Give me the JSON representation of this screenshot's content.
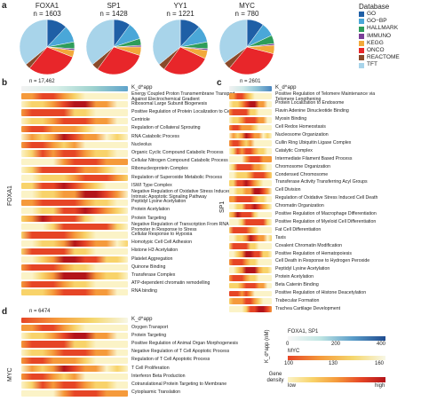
{
  "panel_a": {
    "letter": "a",
    "pies": [
      {
        "factor": "FOXA1",
        "n": "n = 1603",
        "slices": [
          0.12,
          0.1,
          0.04,
          0.01,
          0.04,
          0.3,
          0.03,
          0.36
        ]
      },
      {
        "factor": "SP1",
        "n": "n = 1428",
        "slices": [
          0.1,
          0.1,
          0.04,
          0.01,
          0.05,
          0.3,
          0.04,
          0.36
        ]
      },
      {
        "factor": "YY1",
        "n": "n = 1221",
        "slices": [
          0.12,
          0.1,
          0.04,
          0.01,
          0.05,
          0.28,
          0.04,
          0.36
        ]
      },
      {
        "factor": "MYC",
        "n": "n = 780",
        "slices": [
          0.1,
          0.08,
          0.05,
          0.01,
          0.05,
          0.32,
          0.04,
          0.35
        ]
      }
    ],
    "legend_title": "Database",
    "legend": [
      {
        "label": "GO",
        "color": "#1f5fa6"
      },
      {
        "label": "GO−BP",
        "color": "#4aa7d8"
      },
      {
        "label": "HALLMARK",
        "color": "#2e9d5a"
      },
      {
        "label": "IMMUNO",
        "color": "#7b3f98"
      },
      {
        "label": "KEGG",
        "color": "#f2a93b"
      },
      {
        "label": "ONCO",
        "color": "#e8262a"
      },
      {
        "label": "REACTOME",
        "color": "#8a4a2a"
      },
      {
        "label": "TFT",
        "color": "#a8d4ea"
      }
    ]
  },
  "panel_b": {
    "letter": "b",
    "n": "n = 17,462",
    "factor": "FOXA1",
    "kapo": "K_d^app",
    "terms": [
      "Energy Coupled Proton Transmembrane Transport\nAgainst Electrochemical Gradient",
      "Ribosomal Large Subunit Biogenesis",
      "Positive Regulation of Protein Localization to Cell Surface",
      "Centriole",
      "Regulation of Collateral Sprouting",
      "RNA Catabolic Process",
      "Nucleolus",
      "Organic Cyclic Compound Catabolic Process",
      "Cellular Nitrogen Compound Catabolic Process",
      "Ribonucleoprotein Complex",
      "Regulation of Superoxide Metabolic Process",
      "ISWI Type Complex",
      "Negative Regulation of Oxidative Stress Induced\nIntrinsic Apoptotic Signaling Pathway",
      "Peptidyl Lysine Acetylation",
      "Protein Acetylation",
      "Protein Targeting",
      "Negative Regulation of Transcription From RNA PolII\nPromoter in Response to Stress",
      "Cellular Response to Hypoxia",
      "Homotypic Cell Cell Adhesion",
      "Histone H3 Acetylation",
      "Platelet Aggregation",
      "Quinone Binding",
      "Transferase Complex",
      "ATP-dependent chromatin remodelling",
      "RNA binding"
    ]
  },
  "panel_c": {
    "letter": "c",
    "n": "n = 2601",
    "factor": "SP1",
    "kapo": "K_d^app",
    "terms": [
      "Positive Regulation of Telomere Maintenance via\nTelomere Lengthening",
      "Protein Localization to Endosome",
      "Flavin Adenine Dinucleotide Binding",
      "Myosin Binding",
      "Cell Redox Homeostasis",
      "Nucleosome Organization",
      "Cullin Ring Ubiquitin Ligase Complex",
      "Catalytic Complex",
      "Intermediate Filament Based Process",
      "Chromosome Organization",
      "Condensed Chromosome",
      "Transferase Activity Transferring Acyl Groups",
      "Cell Division",
      "Regulation of Oxidative Stress Induced Cell Death",
      "Chromatin Organization",
      "Positive Regulation of Macrophage Differentiation",
      "Positive Regulation of Myeloid Cell Differentiation",
      "Fat Cell Differentiation",
      "Taxis",
      "Covalent Chromatin Modification",
      "Positive Regulation of Hematopoiesis",
      "Cell Death in Response to Hydrogen Peroxide",
      "Peptidyl Lysine Acetylation",
      "Protein Acetylation",
      "Beta Catenin Binding",
      "Positive Regulation of Histone Deacetylation",
      "Trabecular Formation",
      "Trachea Cartilage Development"
    ]
  },
  "panel_d": {
    "letter": "d",
    "n": "n = 6474",
    "factor": "MYC",
    "kapo": "K_d^app",
    "terms": [
      "Oxygen Transport",
      "Protein Targeting",
      "Positive Regulation of Animal Organ Morphogenesis",
      "Negative Regulation of T Cell Apoptotic Process",
      "Regulation of T Cell Apoptotic Process",
      "T Cell Proliferation",
      "Interferon Beta Production",
      "Cotranslational Protein Targeting to Membrane",
      "Cytoplasmic Translation"
    ]
  },
  "scale": {
    "row1_label": "FOXA1, SP1",
    "row1_ticks": [
      "0",
      "200",
      "400"
    ],
    "row2_label": "MYC",
    "row2_ticks": [
      "100",
      "130",
      "160"
    ],
    "axis_label": "K_d^app (nM)",
    "density_title": "Gene\ndensity",
    "density_low": "low",
    "density_high": "high"
  }
}
